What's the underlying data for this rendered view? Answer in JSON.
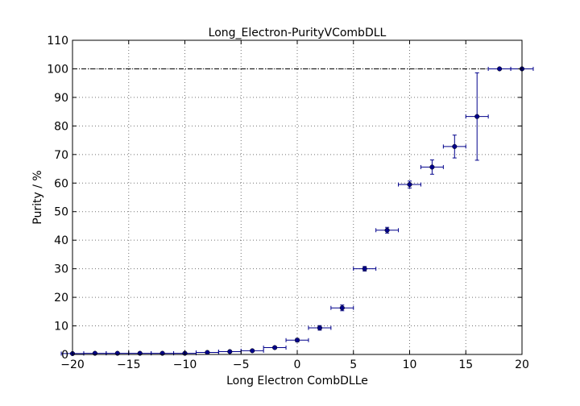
{
  "chart_data": {
    "type": "scatter",
    "title": "Long_Electron-PurityVCombDLL",
    "xlabel": "Long Electron CombDLLe",
    "ylabel": "Purity / %",
    "xlim": [
      -20,
      20
    ],
    "ylim": [
      0,
      110
    ],
    "xticks": [
      -20,
      -15,
      -10,
      -5,
      0,
      5,
      10,
      15,
      20
    ],
    "yticks": [
      0,
      10,
      20,
      30,
      40,
      50,
      60,
      70,
      80,
      90,
      100,
      110
    ],
    "xtick_labels": [
      "−20",
      "−15",
      "−10",
      "−5",
      "0",
      "5",
      "10",
      "15",
      "20"
    ],
    "ytick_labels": [
      "0",
      "10",
      "20",
      "30",
      "40",
      "50",
      "60",
      "70",
      "80",
      "90",
      "100",
      "110"
    ],
    "grid": true,
    "reference_line": {
      "y": 100,
      "style": "dashdot"
    },
    "series": [
      {
        "color": "#00008b",
        "x": [
          -20,
          -18,
          -16,
          -14,
          -12,
          -10,
          -8,
          -6,
          -4,
          -2,
          0,
          2,
          4,
          6,
          8,
          10,
          12,
          14,
          16,
          18,
          20
        ],
        "x_err": [
          1,
          1,
          1,
          1,
          1,
          1,
          1,
          1,
          1,
          1,
          1,
          1,
          1,
          1,
          1,
          1,
          1,
          1,
          1,
          1,
          1
        ],
        "y": [
          0.3,
          0.4,
          0.4,
          0.4,
          0.4,
          0.4,
          0.7,
          1.0,
          1.3,
          2.4,
          5.0,
          9.3,
          16.3,
          30.0,
          43.5,
          59.5,
          65.6,
          72.8,
          83.3,
          100,
          100
        ],
        "y_err": [
          0.1,
          0.1,
          0.1,
          0.1,
          0.1,
          0.1,
          0.2,
          0.2,
          0.3,
          0.4,
          0.6,
          0.8,
          1.0,
          0.8,
          1.0,
          1.2,
          2.5,
          4.0,
          15.3,
          0,
          0
        ]
      }
    ]
  }
}
